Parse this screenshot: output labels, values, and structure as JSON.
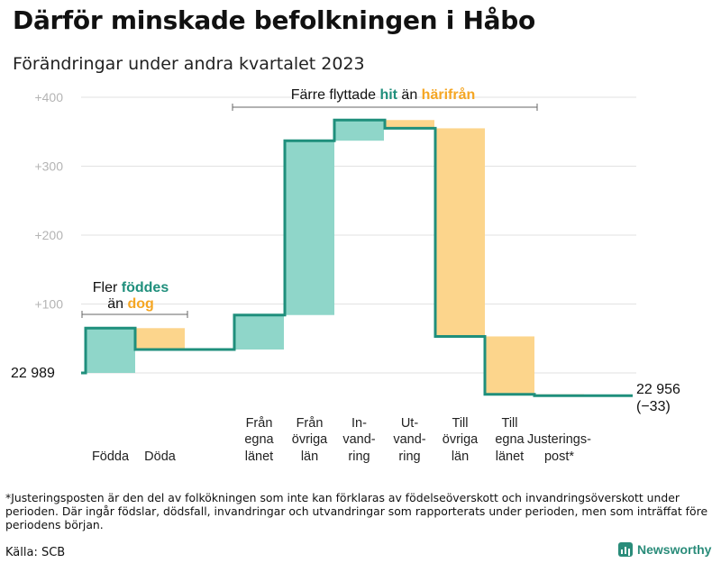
{
  "title": "Därför minskade befolkningen i Håbo",
  "subtitle": "Förändringar under andra kvartalet 2023",
  "colors": {
    "increase": "#8fd6c9",
    "decrease": "#fcd58c",
    "line": "#1f8f7c",
    "grid": "#e2e2e2",
    "hit": "#1f8f7c",
    "harifran": "#f5a623"
  },
  "chart_data": {
    "type": "waterfall",
    "start_value": 22989,
    "start_label": "22  989",
    "end_label": [
      "22 956",
      "(−33)"
    ],
    "y_tick_values": [
      100,
      200,
      300,
      400
    ],
    "y_tick_labels": [
      "+100",
      "+200",
      "+300",
      "+400"
    ],
    "ylim": [
      -35,
      420
    ],
    "steps": [
      {
        "label": [
          "",
          "",
          "Födda"
        ],
        "change": 65
      },
      {
        "label": [
          "",
          "",
          "Döda"
        ],
        "change": -31
      },
      {
        "label": [
          "Från",
          "egna",
          "länet"
        ],
        "change": 50
      },
      {
        "label": [
          "Från",
          "övriga",
          "län"
        ],
        "change": 253
      },
      {
        "label": [
          "In-",
          "vand-",
          "ring"
        ],
        "change": 30
      },
      {
        "label": [
          "Ut-",
          "vand-",
          "ring"
        ],
        "change": -12
      },
      {
        "label": [
          "Till",
          "övriga",
          "län"
        ],
        "change": -302
      },
      {
        "label": [
          "Till",
          "egna",
          "länet"
        ],
        "change": -84
      },
      {
        "label": [
          "",
          "Justerings-",
          "post*"
        ],
        "change": -2
      }
    ],
    "annotations": {
      "births": {
        "line1_a": "Fler ",
        "line1_b": "föddes",
        "line2_a": "än ",
        "line2_b": "dog"
      },
      "migration": {
        "a": "Färre flyttade ",
        "b": "hit",
        "c": "  än ",
        "d": "härifrån"
      }
    }
  },
  "footnote": "*Justeringsposten är den del av folkökningen som inte kan förklaras av födelseöverskott och invandringsöverskott under perioden. Där ingår födslar, dödsfall, invandringar och utvandringar som rapporterats under perioden, men som inträffat före periodens början.",
  "source": "Källa: SCB",
  "brand": {
    "name": "Newsworthy",
    "icon": "bar-chart-icon"
  }
}
